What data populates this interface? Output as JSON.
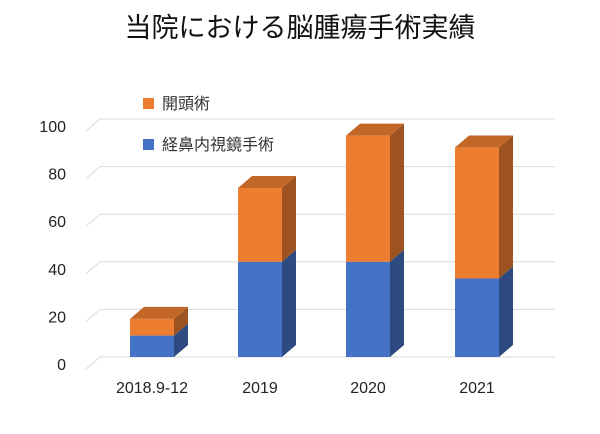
{
  "chart_data": {
    "type": "bar",
    "stacked": true,
    "title": "当院における脳腫瘍手術実績",
    "categories": [
      "2018.9-12",
      "2019",
      "2020",
      "2021"
    ],
    "series": [
      {
        "name": "経鼻内視鏡手術",
        "values": [
          9,
          40,
          40,
          33
        ],
        "color": "#4472c4"
      },
      {
        "name": "開頭術",
        "values": [
          7,
          31,
          53,
          55
        ],
        "color": "#ed7d31"
      }
    ],
    "ylim": [
      0,
      100
    ],
    "yticks": [
      0,
      20,
      40,
      60,
      80,
      100
    ],
    "grid": true,
    "legend_position": "top-left",
    "xlabel": "",
    "ylabel": ""
  }
}
